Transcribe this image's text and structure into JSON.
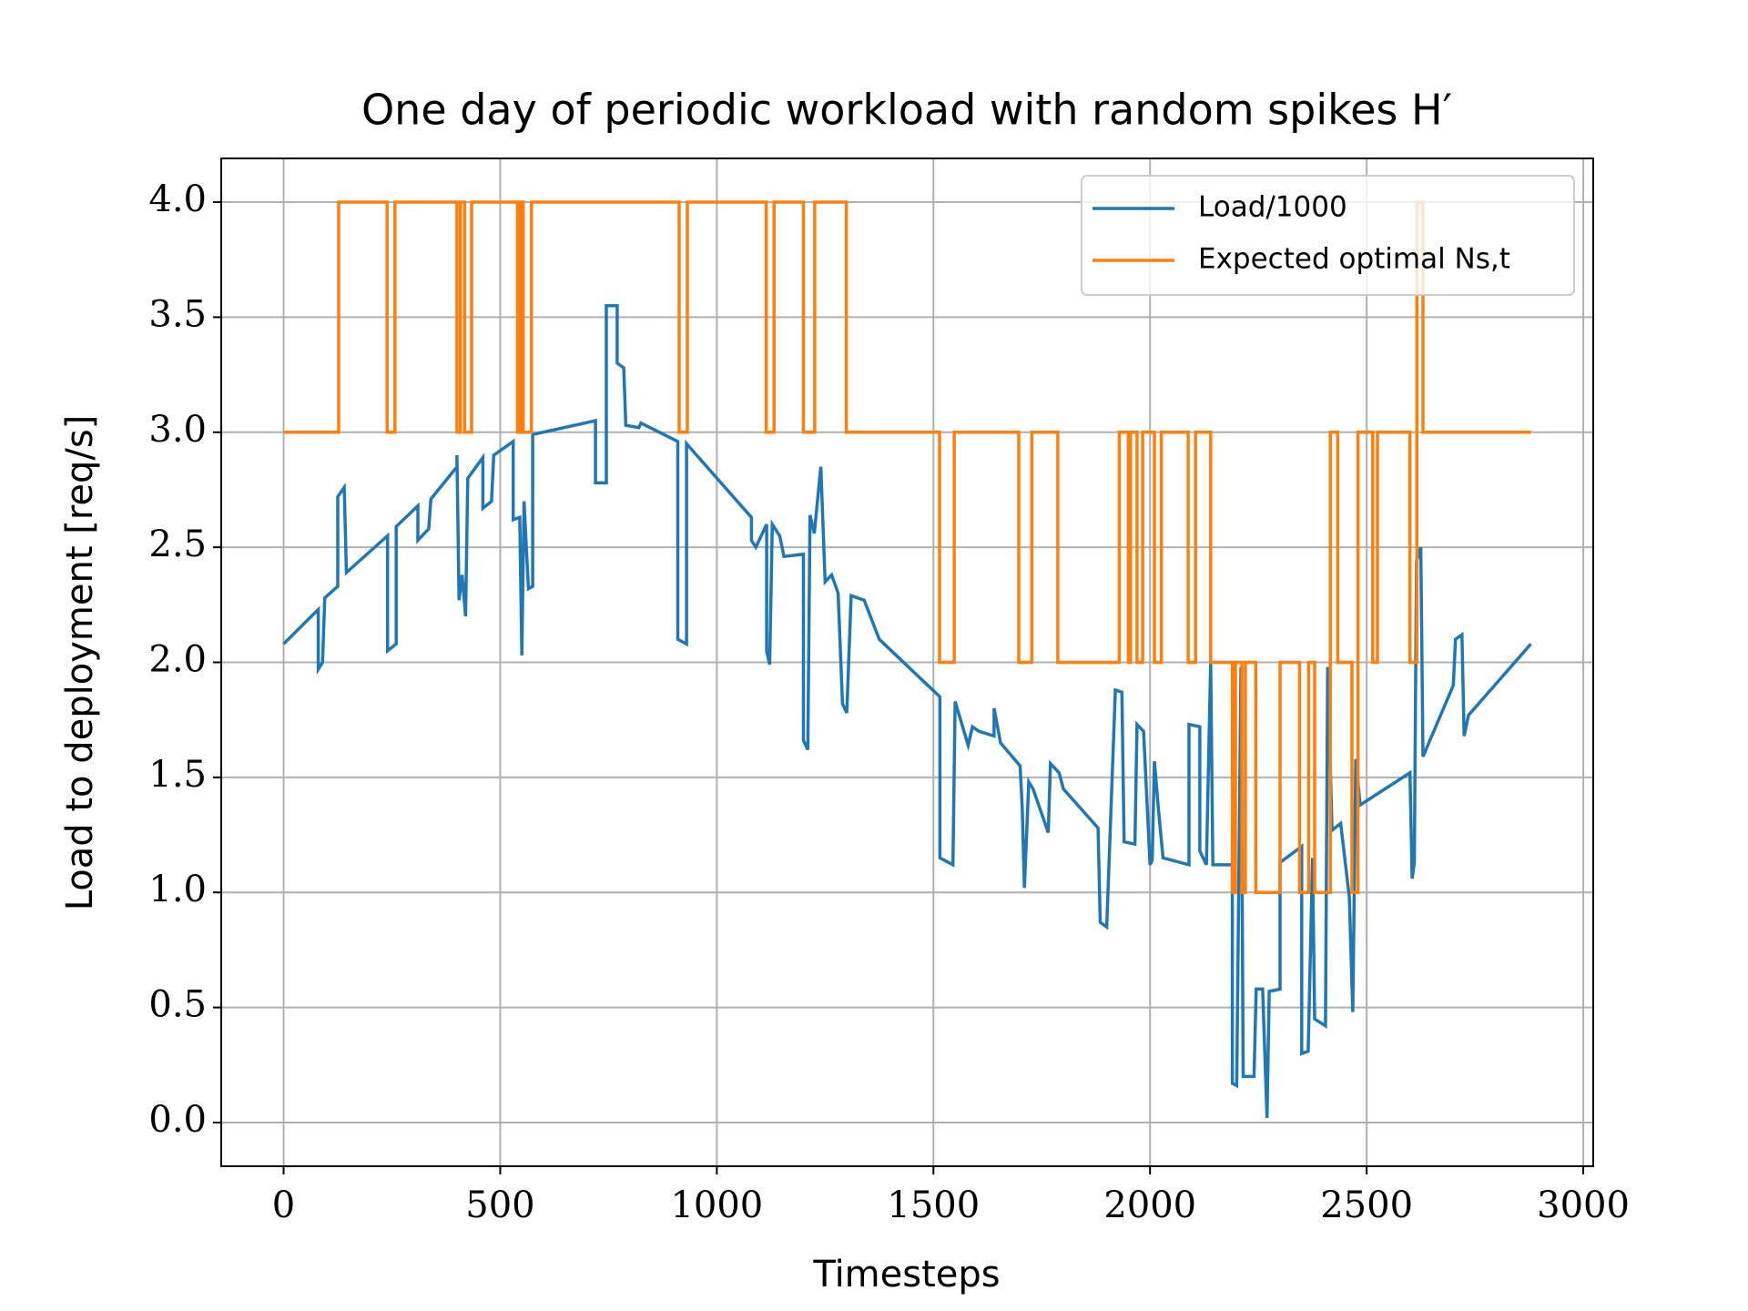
{
  "chart_data": {
    "type": "line",
    "title": "One day of periodic workload with random spikes H′",
    "x_label": "Timesteps",
    "y_label": "Load to deployment [req/s]",
    "xlim": [
      -144,
      3023
    ],
    "ylim": [
      -0.19,
      4.19
    ],
    "xticks": [
      0,
      500,
      1000,
      1500,
      2000,
      2500,
      3000
    ],
    "yticks": [
      {
        "value": 0,
        "label": "0.0"
      },
      {
        "value": 0.5,
        "label": "0.5"
      },
      {
        "value": 1,
        "label": "1.0"
      },
      {
        "value": 1.5,
        "label": "1.5"
      },
      {
        "value": 2,
        "label": "2.0"
      },
      {
        "value": 2.5,
        "label": "2.5"
      },
      {
        "value": 3,
        "label": "3.0"
      },
      {
        "value": 3.5,
        "label": "3.5"
      },
      {
        "value": 4,
        "label": "4.0"
      }
    ],
    "grid": true,
    "legend": "upper right",
    "series": [
      {
        "name": "Load/1000",
        "color": "#1f77b4",
        "x": [
          0,
          80,
          80,
          90,
          95,
          125,
          125,
          140,
          145,
          240,
          240,
          260,
          260,
          310,
          310,
          335,
          340,
          400,
          400,
          405,
          412,
          420,
          425,
          460,
          460,
          480,
          485,
          530,
          530,
          545,
          550,
          555,
          565,
          575,
          575,
          720,
          720,
          745,
          745,
          770,
          770,
          785,
          790,
          820,
          825,
          910,
          910,
          930,
          930,
          1080,
          1080,
          1090,
          1115,
          1115,
          1122,
          1128,
          1145,
          1155,
          1200,
          1200,
          1210,
          1215,
          1225,
          1240,
          1250,
          1265,
          1280,
          1290,
          1300,
          1310,
          1340,
          1375,
          1515,
          1515,
          1545,
          1550,
          1580,
          1590,
          1605,
          1640,
          1640,
          1655,
          1700,
          1705,
          1710,
          1720,
          1730,
          1765,
          1770,
          1790,
          1800,
          1880,
          1885,
          1900,
          1920,
          1935,
          1940,
          1965,
          1970,
          1985,
          2000,
          2005,
          2010,
          2020,
          2030,
          2090,
          2090,
          2115,
          2115,
          2130,
          2140,
          2145,
          2190,
          2190,
          2200,
          2210,
          2215,
          2240,
          2245,
          2260,
          2270,
          2275,
          2300,
          2300,
          2350,
          2350,
          2365,
          2375,
          2380,
          2405,
          2410,
          2420,
          2440,
          2460,
          2468,
          2475,
          2485,
          2600,
          2605,
          2610,
          2615,
          2625,
          2630,
          2700,
          2705,
          2720,
          2725,
          2735,
          2879
        ],
        "values": [
          2.08,
          2.23,
          1.97,
          2.0,
          2.28,
          2.33,
          2.72,
          2.76,
          2.39,
          2.55,
          2.05,
          2.08,
          2.59,
          2.68,
          2.53,
          2.58,
          2.71,
          2.85,
          2.9,
          2.27,
          2.38,
          2.2,
          2.8,
          2.89,
          2.67,
          2.7,
          2.9,
          2.96,
          2.62,
          2.63,
          2.03,
          2.7,
          2.32,
          2.33,
          2.99,
          3.05,
          2.78,
          2.78,
          3.55,
          3.55,
          3.3,
          3.28,
          3.03,
          3.02,
          3.04,
          2.96,
          2.1,
          2.08,
          2.95,
          2.63,
          2.53,
          2.5,
          2.6,
          2.05,
          1.99,
          2.6,
          2.55,
          2.46,
          2.47,
          1.66,
          1.62,
          2.64,
          2.56,
          2.85,
          2.35,
          2.38,
          2.3,
          1.82,
          1.78,
          2.29,
          2.27,
          2.1,
          1.85,
          1.15,
          1.12,
          1.83,
          1.64,
          1.72,
          1.7,
          1.68,
          1.8,
          1.65,
          1.55,
          1.37,
          1.02,
          1.48,
          1.45,
          1.26,
          1.56,
          1.52,
          1.45,
          1.28,
          0.87,
          0.85,
          1.88,
          1.87,
          1.22,
          1.21,
          1.73,
          1.7,
          1.12,
          1.14,
          1.57,
          1.35,
          1.15,
          1.12,
          1.73,
          1.72,
          1.18,
          1.12,
          2.0,
          1.12,
          1.12,
          0.17,
          0.16,
          1.98,
          0.2,
          0.2,
          0.58,
          0.58,
          0.02,
          0.57,
          0.58,
          1.13,
          1.2,
          0.3,
          0.31,
          1.15,
          0.45,
          0.42,
          1.98,
          1.27,
          1.3,
          0.98,
          0.48,
          1.58,
          1.38,
          1.52,
          1.06,
          1.13,
          2.44,
          2.5,
          1.59,
          1.9,
          2.1,
          2.12,
          1.68,
          1.77,
          2.08
        ]
      },
      {
        "name": "Expected optimal Ns,t",
        "color": "#ff7f0e",
        "x": [
          0,
          127,
          127,
          239,
          239,
          257,
          257,
          400,
          400,
          408,
          408,
          418,
          418,
          434,
          434,
          540,
          540,
          546,
          546,
          553,
          553,
          572,
          572,
          913,
          913,
          932,
          932,
          1114,
          1114,
          1132,
          1132,
          1200,
          1200,
          1226,
          1226,
          1299,
          1299,
          1514,
          1514,
          1548,
          1548,
          1697,
          1697,
          1727,
          1727,
          1787,
          1787,
          1929,
          1929,
          1950,
          1950,
          1955,
          1955,
          1970,
          1970,
          1983,
          1983,
          2010,
          2010,
          2026,
          2026,
          2088,
          2088,
          2105,
          2105,
          2140,
          2140,
          2190,
          2190,
          2197,
          2197,
          2212,
          2212,
          2220,
          2220,
          2244,
          2244,
          2300,
          2300,
          2345,
          2345,
          2366,
          2366,
          2380,
          2380,
          2416,
          2416,
          2433,
          2433,
          2466,
          2466,
          2480,
          2480,
          2514,
          2514,
          2525,
          2525,
          2600,
          2600,
          2616,
          2616,
          2630,
          2630,
          2879
        ],
        "values": [
          3,
          3,
          4,
          4,
          3,
          3,
          4,
          4,
          3,
          3,
          4,
          4,
          3,
          3,
          4,
          4,
          3,
          3,
          4,
          4,
          3,
          3,
          4,
          4,
          3,
          3,
          4,
          4,
          3,
          3,
          4,
          4,
          3,
          3,
          4,
          4,
          3,
          3,
          2,
          2,
          3,
          3,
          2,
          2,
          3,
          3,
          2,
          2,
          3,
          3,
          2,
          2,
          3,
          3,
          2,
          2,
          3,
          3,
          2,
          2,
          3,
          3,
          2,
          2,
          3,
          3,
          2,
          2,
          1,
          1,
          2,
          2,
          1,
          1,
          2,
          2,
          1,
          1,
          2,
          2,
          1,
          1,
          2,
          2,
          1,
          1,
          3,
          3,
          2,
          2,
          1,
          1,
          3,
          3,
          2,
          2,
          3,
          3,
          2,
          2,
          4,
          4,
          3,
          3
        ]
      }
    ]
  }
}
